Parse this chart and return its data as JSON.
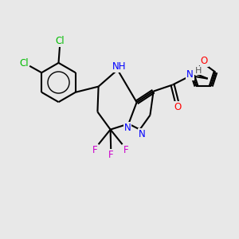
{
  "background_color": "#e8e8e8",
  "bond_color": "#000000",
  "atom_colors": {
    "Cl": "#00bb00",
    "N": "#0000ff",
    "O": "#ff0000",
    "F": "#cc00cc",
    "H": "#555555",
    "C": "#000000"
  },
  "figsize": [
    3.0,
    3.0
  ],
  "dpi": 100
}
